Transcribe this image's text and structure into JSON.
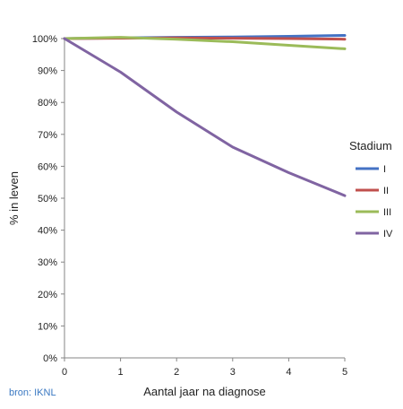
{
  "chart_data": {
    "type": "line",
    "xlabel": "Aantal jaar na diagnose",
    "ylabel": "% in leven",
    "x": [
      0,
      1,
      2,
      3,
      4,
      5
    ],
    "xlim": [
      0,
      5
    ],
    "ylim": [
      0,
      100
    ],
    "y_ticks": [
      "0%",
      "10%",
      "20%",
      "30%",
      "40%",
      "50%",
      "60%",
      "70%",
      "80%",
      "90%",
      "100%"
    ],
    "x_ticks": [
      "0",
      "1",
      "2",
      "3",
      "4",
      "5"
    ],
    "grid": false,
    "legend": {
      "title": "Stadium",
      "position": "right"
    },
    "series": [
      {
        "name": "I",
        "color": "#4472c4",
        "values": [
          100,
          100.2,
          100.4,
          100.5,
          100.7,
          101.0
        ]
      },
      {
        "name": "II",
        "color": "#c0504d",
        "values": [
          100,
          100.1,
          100.2,
          100.1,
          100.0,
          99.8
        ]
      },
      {
        "name": "III",
        "color": "#9bbb59",
        "values": [
          100,
          100.4,
          99.8,
          99.0,
          97.9,
          96.8
        ]
      },
      {
        "name": "IV",
        "color": "#8064a2",
        "values": [
          100,
          89.5,
          77.0,
          66.0,
          58.0,
          50.8
        ]
      }
    ]
  },
  "source_note": "bron: IKNL"
}
